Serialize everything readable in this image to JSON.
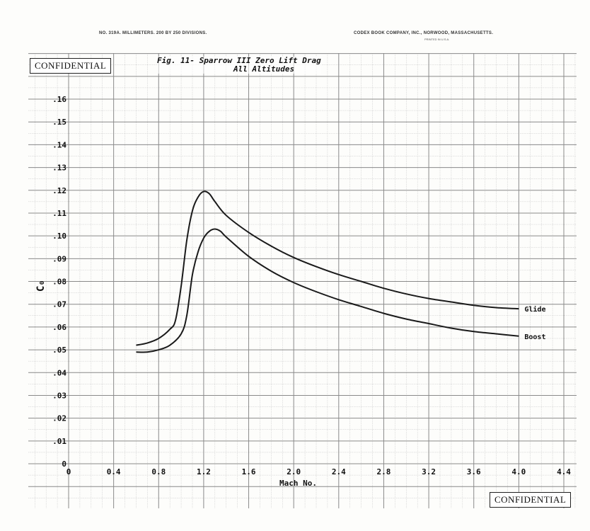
{
  "header": {
    "left": "NO. 319A.  MILLIMETERS.  200 BY 250 DIVISIONS.",
    "right": "CODEX BOOK COMPANY, INC., NORWOOD, MASSACHUSETTS.",
    "right_sub": "PRINTED IN U.S.A."
  },
  "confidential_top": "CONFIDENTIAL",
  "confidential_bottom": "CONFIDENTIAL",
  "chart_data": {
    "type": "line",
    "title": "Fig. 11- Sparrow III Zero Lift Drag",
    "subtitle": "All Altitudes",
    "xlabel": "Mach No.",
    "ylabel": "C₀",
    "xlim": [
      0,
      4.4
    ],
    "ylim": [
      0,
      0.16
    ],
    "x_ticks": [
      {
        "value": 0,
        "label": "0"
      },
      {
        "value": 0.4,
        "label": "0.4"
      },
      {
        "value": 0.8,
        "label": "0.8"
      },
      {
        "value": 1.2,
        "label": "1.2"
      },
      {
        "value": 1.6,
        "label": "1.6"
      },
      {
        "value": 2.0,
        "label": "2.0"
      },
      {
        "value": 2.4,
        "label": "2.4"
      },
      {
        "value": 2.8,
        "label": "2.8"
      },
      {
        "value": 3.2,
        "label": "3.2"
      },
      {
        "value": 3.6,
        "label": "3.6"
      },
      {
        "value": 4.0,
        "label": "4.0"
      },
      {
        "value": 4.4,
        "label": "4.4"
      }
    ],
    "y_ticks": [
      {
        "value": 0,
        "label": "0"
      },
      {
        "value": 0.01,
        "label": ".01"
      },
      {
        "value": 0.02,
        "label": ".02"
      },
      {
        "value": 0.03,
        "label": ".03"
      },
      {
        "value": 0.04,
        "label": ".04"
      },
      {
        "value": 0.05,
        "label": ".05"
      },
      {
        "value": 0.06,
        "label": ".06"
      },
      {
        "value": 0.07,
        "label": ".07"
      },
      {
        "value": 0.08,
        "label": ".08"
      },
      {
        "value": 0.09,
        "label": ".09"
      },
      {
        "value": 0.1,
        "label": ".10"
      },
      {
        "value": 0.11,
        "label": ".11"
      },
      {
        "value": 0.12,
        "label": ".12"
      },
      {
        "value": 0.13,
        "label": ".13"
      },
      {
        "value": 0.14,
        "label": ".14"
      },
      {
        "value": 0.15,
        "label": ".15"
      },
      {
        "value": 0.16,
        "label": ".16"
      }
    ],
    "grid": true,
    "series": [
      {
        "name": "Glide",
        "x": [
          0.6,
          0.7,
          0.8,
          0.9,
          0.95,
          1.0,
          1.05,
          1.1,
          1.15,
          1.2,
          1.25,
          1.3,
          1.4,
          1.6,
          1.8,
          2.0,
          2.2,
          2.4,
          2.6,
          2.8,
          3.0,
          3.2,
          3.4,
          3.6,
          3.8,
          4.0
        ],
        "y": [
          0.052,
          0.053,
          0.055,
          0.059,
          0.063,
          0.078,
          0.098,
          0.111,
          0.117,
          0.1195,
          0.1185,
          0.115,
          0.109,
          0.1015,
          0.0955,
          0.0905,
          0.0865,
          0.083,
          0.08,
          0.077,
          0.0745,
          0.0725,
          0.071,
          0.0695,
          0.0685,
          0.068
        ]
      },
      {
        "name": "Boost",
        "x": [
          0.6,
          0.7,
          0.8,
          0.9,
          1.0,
          1.05,
          1.1,
          1.15,
          1.2,
          1.25,
          1.3,
          1.35,
          1.4,
          1.6,
          1.8,
          2.0,
          2.2,
          2.4,
          2.6,
          2.8,
          3.0,
          3.2,
          3.4,
          3.6,
          3.8,
          4.0
        ],
        "y": [
          0.049,
          0.049,
          0.05,
          0.052,
          0.057,
          0.065,
          0.083,
          0.093,
          0.099,
          0.102,
          0.103,
          0.102,
          0.0995,
          0.091,
          0.0845,
          0.0795,
          0.0755,
          0.072,
          0.069,
          0.066,
          0.0635,
          0.0615,
          0.0595,
          0.058,
          0.057,
          0.056
        ]
      }
    ],
    "series_labels": [
      "Glide",
      "Boost"
    ],
    "colors": {
      "line": "#1a1a1a",
      "grid_major": "#8a8a8a",
      "grid_minor": "#c8c8c8"
    }
  }
}
